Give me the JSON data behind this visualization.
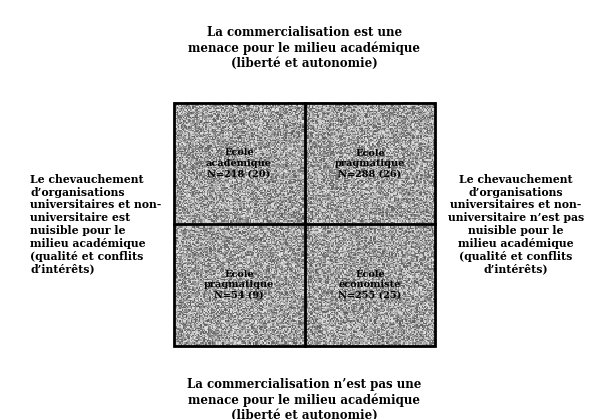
{
  "top_label": "La commercialisation est une\nmenace pour le milieu académique\n(liberté et autonomie)",
  "bottom_label": "La commercialisation n’est pas une\nmenace pour le milieu académique\n(liberté et autonomie)",
  "left_label": "Le chevauchement\nd’organisations\nuniversitaires et non-\nuniversitaire est\nnuisible pour le\nmilieu académique\n(qualité et conflits\nd’intérêts)",
  "right_label": "Le chevauchement\nd’organisations\nuniversitaires et non-\nuniversitaire n’est pas\nnuisible pour le\nmilieu académique\n(qualité et conflits\nd’intérêts)",
  "quadrants": [
    {
      "label": "École\nacadémique\nN=218 (20)"
    },
    {
      "label": "École\npragmatique\nN=288 (26)"
    },
    {
      "label": "École\npragmatique\nN=54 (9)"
    },
    {
      "label": "École\néconomiste\nN=255 (25)"
    }
  ],
  "border_color": "#000000",
  "bg_color": "#ffffff",
  "fig_width": 6.09,
  "fig_height": 4.19,
  "dpi": 100
}
